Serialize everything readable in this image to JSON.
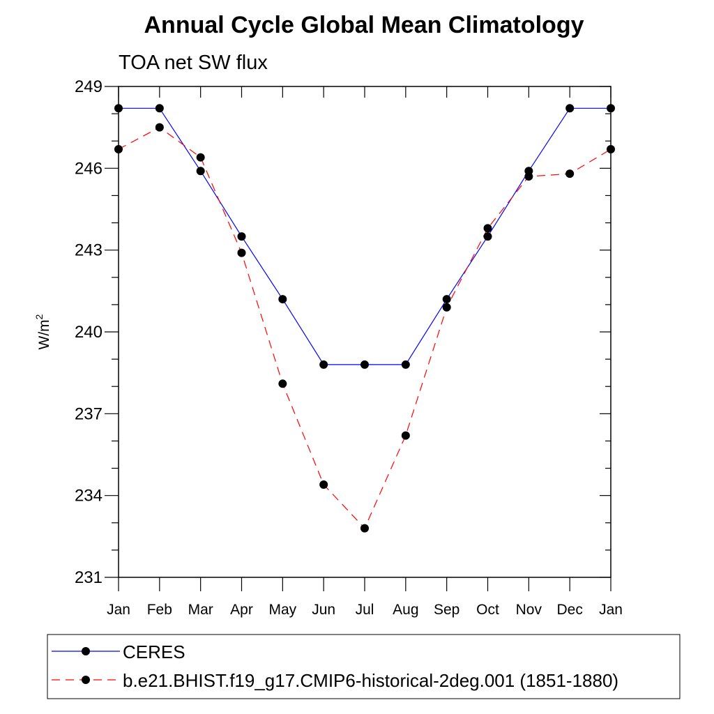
{
  "chart_data": {
    "type": "line",
    "title": "Annual Cycle Global Mean Climatology",
    "subtitle": "TOA net SW flux",
    "ylabel_base": "W/m",
    "ylabel_sup": "2",
    "ylim": [
      231,
      249
    ],
    "yticks": [
      "249",
      "246",
      "243",
      "240",
      "237",
      "234",
      "231"
    ],
    "categories": [
      "Jan",
      "Feb",
      "Mar",
      "Apr",
      "May",
      "Jun",
      "Jul",
      "Aug",
      "Sep",
      "Oct",
      "Nov",
      "Dec",
      "Jan"
    ],
    "grid": false,
    "legend_position": "bottom",
    "series": [
      {
        "name": "CERES",
        "color": "#0000ff",
        "dash": "solid",
        "values": [
          248.2,
          248.2,
          245.9,
          243.5,
          241.2,
          238.8,
          238.8,
          238.8,
          241.2,
          243.5,
          245.9,
          248.2,
          248.2
        ]
      },
      {
        "name": "b.e21.BHIST.f19_g17.CMIP6-historical-2deg.001 (1851-1880)",
        "color": "#ff0000",
        "dash": "dashed",
        "values": [
          246.7,
          247.5,
          246.4,
          242.9,
          238.1,
          234.4,
          232.8,
          236.2,
          240.9,
          243.8,
          245.7,
          245.8,
          246.7
        ]
      }
    ]
  }
}
